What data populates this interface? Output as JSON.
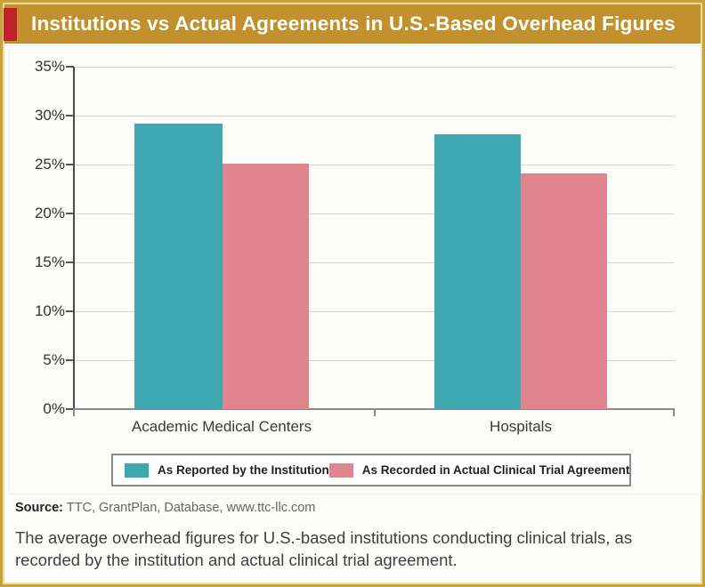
{
  "header": {
    "title": "Institutions vs Actual Agreements in U.S.-Based Overhead Figures",
    "banner_color": "#c2902c",
    "accent_color": "#c1212b",
    "frame_color": "#c9a233"
  },
  "chart_data": {
    "type": "bar",
    "categories": [
      "Academic Medical Centers",
      "Hospitals"
    ],
    "series": [
      {
        "name": "As Reported by the Institution",
        "color": "#3fa7b0",
        "values": [
          29.2,
          28.1
        ]
      },
      {
        "name": "As Recorded in Actual Clinical Trial Agreement",
        "color": "#e0858d",
        "values": [
          25.1,
          24.1
        ]
      }
    ],
    "title": "Institutions vs Actual Agreements in U.S.-Based Overhead Figures",
    "xlabel": "",
    "ylabel": "",
    "ylim": [
      0,
      35
    ],
    "ytick_step": 5,
    "ytick_labels": [
      "0%",
      "5%",
      "10%",
      "15%",
      "20%",
      "25%",
      "30%",
      "35%"
    ],
    "grid": true,
    "legend_position": "bottom"
  },
  "source": {
    "label": "Source:",
    "text": " TTC, GrantPlan, Database, www.ttc-llc.com"
  },
  "caption": "The average overhead figures for U.S.-based institutions conducting clinical trials, as recorded by the institution and actual clinical trial agreement."
}
